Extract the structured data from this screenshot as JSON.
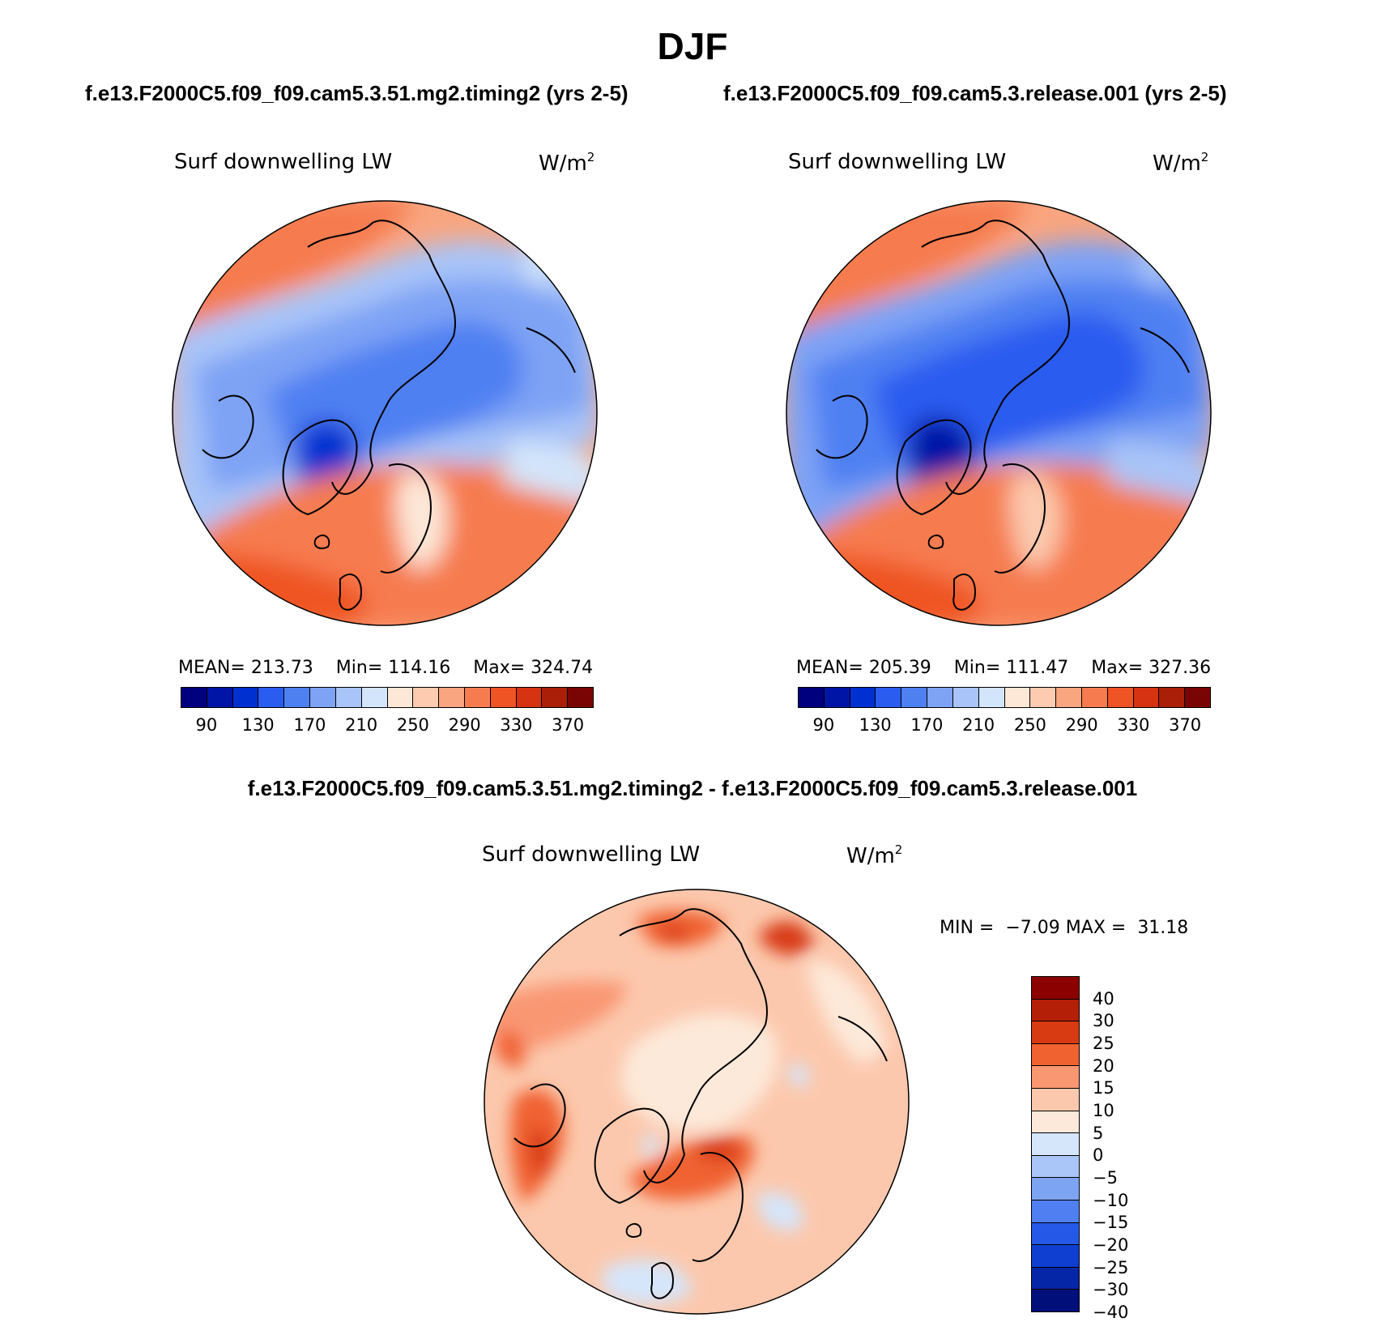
{
  "season": "DJF",
  "variable": "Surf downwelling LW",
  "units_base": "W/m",
  "units_exp": "2",
  "panels": [
    {
      "case_title": "f.e13.F2000C5.f09_f09.cam5.3.51.mg2.timing2 (yrs 2-5)",
      "mean_label": "MEAN=",
      "mean": "213.73",
      "min_label": "Min=",
      "min": "114.16",
      "max_label": "Max=",
      "max": "324.74"
    },
    {
      "case_title": "f.e13.F2000C5.f09_f09.cam5.3.release.001 (yrs 2-5)",
      "mean_label": "MEAN=",
      "mean": "205.39",
      "min_label": "Min=",
      "min": "111.47",
      "max_label": "Max=",
      "max": "327.36"
    }
  ],
  "abs_colorbar": {
    "colors": [
      "#00007f",
      "#0015a6",
      "#0030d0",
      "#2a5cf0",
      "#4f80f2",
      "#7ea3f5",
      "#a9c4f8",
      "#d3e5fb",
      "#fde8d8",
      "#fccbb0",
      "#f9a57f",
      "#f67c4f",
      "#ef5424",
      "#d53311",
      "#ab1f08",
      "#7a0403"
    ],
    "ticks": [
      "90",
      "130",
      "170",
      "210",
      "250",
      "290",
      "330",
      "370"
    ]
  },
  "diff": {
    "title": "f.e13.F2000C5.f09_f09.cam5.3.51.mg2.timing2 - f.e13.F2000C5.f09_f09.cam5.3.release.001",
    "min_label": "MIN =",
    "min": "−7.09",
    "max_label": "MAX =",
    "max": "31.18",
    "colors_top_to_bottom": [
      "#8b0000",
      "#b41f08",
      "#d83a12",
      "#f06230",
      "#f99773",
      "#fcc8ad",
      "#fde9d9",
      "#d5e6fb",
      "#aac5f8",
      "#7da3f3",
      "#4f7ff0",
      "#2558e6",
      "#0f3fd0",
      "#0526a6",
      "#000f7a"
    ],
    "ticks": [
      "40",
      "30",
      "25",
      "20",
      "15",
      "10",
      "5",
      "0",
      "−5",
      "−10",
      "−15",
      "−20",
      "−25",
      "−30",
      "−40"
    ]
  }
}
